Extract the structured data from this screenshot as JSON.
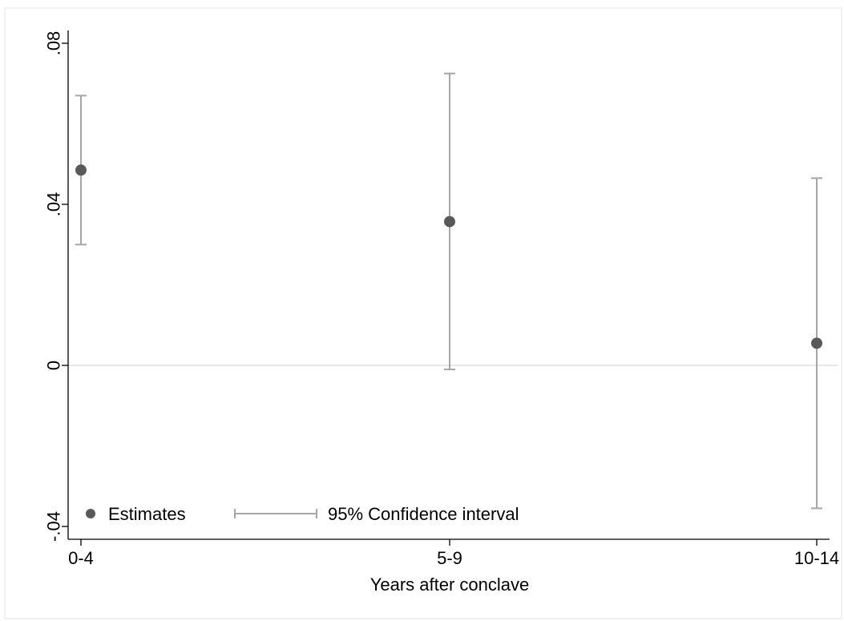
{
  "chart_data": {
    "type": "scatter",
    "title": "",
    "xlabel": "Years after conclave",
    "ylabel": "",
    "categories": [
      "0-4",
      "5-9",
      "10-14"
    ],
    "yticks": [
      {
        "value": -0.04,
        "label": "-.04"
      },
      {
        "value": 0,
        "label": "0"
      },
      {
        "value": 0.04,
        "label": ".04"
      },
      {
        "value": 0.08,
        "label": ".08"
      }
    ],
    "ylim": [
      -0.04,
      0.08
    ],
    "reference_line": 0,
    "series": [
      {
        "name": "Estimates",
        "values": [
          0.0485,
          0.0357,
          0.0055
        ]
      },
      {
        "name": "95% Confidence interval",
        "lower": [
          0.03,
          -0.001,
          -0.0355
        ],
        "upper": [
          0.067,
          0.0725,
          0.0465
        ]
      }
    ],
    "legend_position": "bottom-left-inside",
    "grid": false,
    "colors": {
      "point": "#595959",
      "interval": "#a6a6a6",
      "reference_line": "#e8e8e8",
      "axis": "#000000",
      "frame": "#eeeeee"
    }
  }
}
